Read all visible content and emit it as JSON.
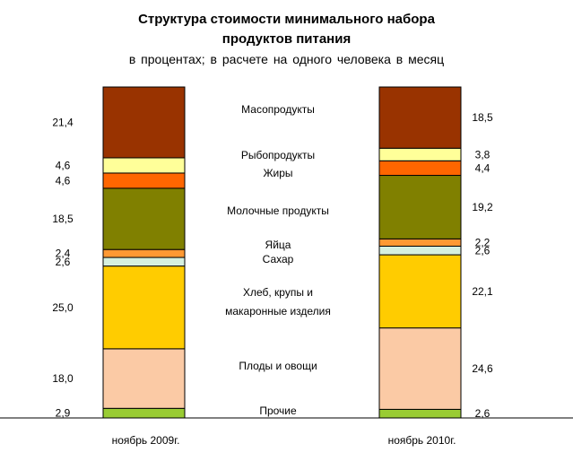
{
  "chart_data": {
    "type": "stacked-bar",
    "title_line1": "Структура стоимости минимального набора",
    "title_line2": "продуктов питания",
    "subtitle": "в процентах;  в  расчете  на одного  человека в месяц",
    "categories": [
      "ноябрь 2009г.",
      "ноябрь 2010г."
    ],
    "series": [
      {
        "name": "Прочие",
        "color": "#99cc33",
        "values": [
          2.9,
          2.6
        ],
        "value_labels": [
          "2,9",
          "2,6"
        ]
      },
      {
        "name": "Плоды и овощи",
        "color": "#fbcaa5",
        "values": [
          18.0,
          24.6
        ],
        "value_labels": [
          "18,0",
          "24,6"
        ]
      },
      {
        "name": "Хлеб, крупы и макаронные изделия",
        "name_lines": [
          "Хлеб, крупы и",
          "макаронные изделия"
        ],
        "color": "#ffcc00",
        "values": [
          25.0,
          22.1
        ],
        "value_labels": [
          "25,0",
          "22,1"
        ]
      },
      {
        "name": "Сахар",
        "color": "#d6f0df",
        "values": [
          2.6,
          2.6
        ],
        "value_labels": [
          "2,6",
          "2,6"
        ]
      },
      {
        "name": "Яйца",
        "color": "#ff9933",
        "values": [
          2.4,
          2.2
        ],
        "value_labels": [
          "2,4",
          "2,2"
        ]
      },
      {
        "name": "Молочные продукты",
        "color": "#808000",
        "values": [
          18.5,
          19.2
        ],
        "value_labels": [
          "18,5",
          "19,2"
        ]
      },
      {
        "name": "Жиры",
        "color": "#ff6600",
        "values": [
          4.6,
          4.4
        ],
        "value_labels": [
          "4,6",
          "4,4"
        ]
      },
      {
        "name": "Рыбопродукты",
        "color": "#ffff99",
        "values": [
          4.6,
          3.8
        ],
        "value_labels": [
          "4,6",
          "3,8"
        ]
      },
      {
        "name": "Масопродукты",
        "color": "#993300",
        "values": [
          21.4,
          18.5
        ],
        "value_labels": [
          "21,4",
          "18,5"
        ]
      }
    ],
    "ylim": [
      0,
      100
    ]
  }
}
